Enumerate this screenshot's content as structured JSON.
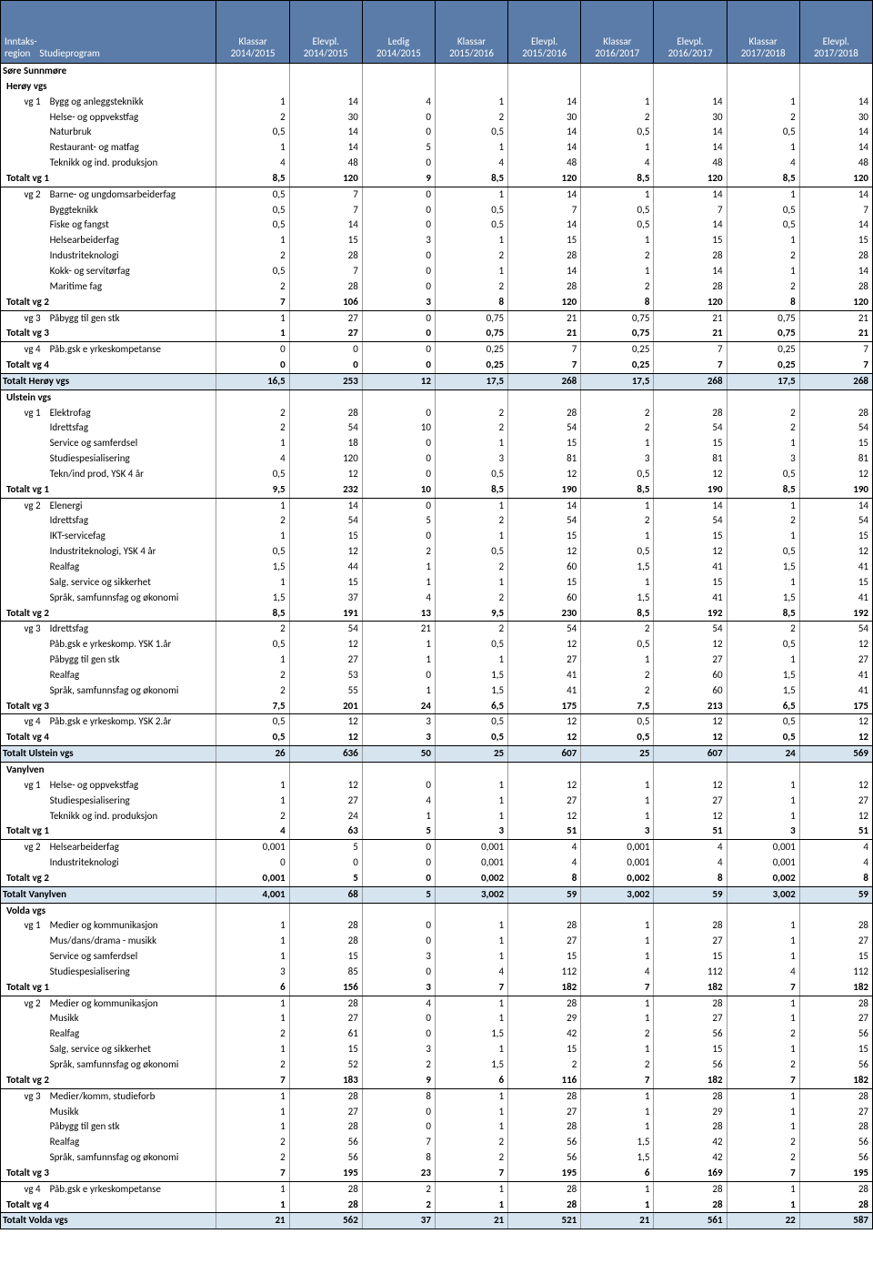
{
  "header": {
    "col_region_label": "Inntaks-\nregion",
    "col_prog_label": "Studieprogram",
    "groups": [
      {
        "k": "Klassar",
        "y": "2014/2015"
      },
      {
        "k": "Elevpl.",
        "y": "2014/2015"
      },
      {
        "k": "Ledig",
        "y": "2014/2015"
      },
      {
        "k": "Klassar",
        "y": "2015/2016"
      },
      {
        "k": "Elevpl.",
        "y": "2015/2016"
      },
      {
        "k": "Klassar",
        "y": "2016/2017"
      },
      {
        "k": "Elevpl.",
        "y": "2016/2017"
      },
      {
        "k": "Klassar",
        "y": "2017/2018"
      },
      {
        "k": "Elevpl.",
        "y": "2017/2018"
      }
    ]
  },
  "colors": {
    "header_bg": "#5b7ca8",
    "header_fg": "#ffffff",
    "schooltotal_bg": "#d6e4f0"
  },
  "rows": [
    {
      "t": "region",
      "label": "Søre Sunnmøre"
    },
    {
      "t": "school",
      "label": "Herøy vgs"
    },
    {
      "t": "data",
      "vg": "vg 1",
      "label": "Bygg og anleggsteknikk",
      "v": [
        "1",
        "14",
        "4",
        "1",
        "14",
        "1",
        "14",
        "1",
        "14"
      ]
    },
    {
      "t": "data",
      "vg": "",
      "label": "Helse- og oppvekstfag",
      "v": [
        "2",
        "30",
        "0",
        "2",
        "30",
        "2",
        "30",
        "2",
        "30"
      ]
    },
    {
      "t": "data",
      "vg": "",
      "label": "Naturbruk",
      "v": [
        "0,5",
        "14",
        "0",
        "0,5",
        "14",
        "0,5",
        "14",
        "0,5",
        "14"
      ]
    },
    {
      "t": "data",
      "vg": "",
      "label": "Restaurant- og matfag",
      "v": [
        "1",
        "14",
        "5",
        "1",
        "14",
        "1",
        "14",
        "1",
        "14"
      ]
    },
    {
      "t": "data",
      "vg": "",
      "label": "Teknikk og ind. produksjon",
      "v": [
        "4",
        "48",
        "0",
        "4",
        "48",
        "4",
        "48",
        "4",
        "48"
      ]
    },
    {
      "t": "subtotal",
      "label": "Totalt vg 1",
      "v": [
        "8,5",
        "120",
        "9",
        "8,5",
        "120",
        "8,5",
        "120",
        "8,5",
        "120"
      ]
    },
    {
      "t": "data",
      "vg": "vg 2",
      "label": "Barne- og ungdomsarbeiderfag",
      "v": [
        "0,5",
        "7",
        "0",
        "1",
        "14",
        "1",
        "14",
        "1",
        "14"
      ]
    },
    {
      "t": "data",
      "vg": "",
      "label": "Byggteknikk",
      "v": [
        "0,5",
        "7",
        "0",
        "0,5",
        "7",
        "0,5",
        "7",
        "0,5",
        "7"
      ]
    },
    {
      "t": "data",
      "vg": "",
      "label": "Fiske og fangst",
      "v": [
        "0,5",
        "14",
        "0",
        "0,5",
        "14",
        "0,5",
        "14",
        "0,5",
        "14"
      ]
    },
    {
      "t": "data",
      "vg": "",
      "label": "Helsearbeiderfag",
      "v": [
        "1",
        "15",
        "3",
        "1",
        "15",
        "1",
        "15",
        "1",
        "15"
      ]
    },
    {
      "t": "data",
      "vg": "",
      "label": "Industriteknologi",
      "v": [
        "2",
        "28",
        "0",
        "2",
        "28",
        "2",
        "28",
        "2",
        "28"
      ]
    },
    {
      "t": "data",
      "vg": "",
      "label": "Kokk- og servitørfag",
      "v": [
        "0,5",
        "7",
        "0",
        "1",
        "14",
        "1",
        "14",
        "1",
        "14"
      ]
    },
    {
      "t": "data",
      "vg": "",
      "label": "Maritime fag",
      "v": [
        "2",
        "28",
        "0",
        "2",
        "28",
        "2",
        "28",
        "2",
        "28"
      ]
    },
    {
      "t": "subtotal",
      "label": "Totalt vg 2",
      "v": [
        "7",
        "106",
        "3",
        "8",
        "120",
        "8",
        "120",
        "8",
        "120"
      ]
    },
    {
      "t": "data",
      "vg": "vg 3",
      "label": "Påbygg til gen stk",
      "v": [
        "1",
        "27",
        "0",
        "0,75",
        "21",
        "0,75",
        "21",
        "0,75",
        "21"
      ]
    },
    {
      "t": "subtotal",
      "label": "Totalt vg 3",
      "v": [
        "1",
        "27",
        "0",
        "0,75",
        "21",
        "0,75",
        "21",
        "0,75",
        "21"
      ]
    },
    {
      "t": "data",
      "vg": "vg 4",
      "label": "Påb.gsk e yrkeskompetanse",
      "v": [
        "0",
        "0",
        "0",
        "0,25",
        "7",
        "0,25",
        "7",
        "0,25",
        "7"
      ]
    },
    {
      "t": "subtotal",
      "label": "Totalt vg 4",
      "v": [
        "0",
        "0",
        "0",
        "0,25",
        "7",
        "0,25",
        "7",
        "0,25",
        "7"
      ]
    },
    {
      "t": "schooltotal",
      "label": "Totalt Herøy vgs",
      "v": [
        "16,5",
        "253",
        "12",
        "17,5",
        "268",
        "17,5",
        "268",
        "17,5",
        "268"
      ]
    },
    {
      "t": "school",
      "label": "Ulstein vgs"
    },
    {
      "t": "data",
      "vg": "vg 1",
      "label": "Elektrofag",
      "v": [
        "2",
        "28",
        "0",
        "2",
        "28",
        "2",
        "28",
        "2",
        "28"
      ]
    },
    {
      "t": "data",
      "vg": "",
      "label": "Idrettsfag",
      "v": [
        "2",
        "54",
        "10",
        "2",
        "54",
        "2",
        "54",
        "2",
        "54"
      ]
    },
    {
      "t": "data",
      "vg": "",
      "label": "Service og samferdsel",
      "v": [
        "1",
        "18",
        "0",
        "1",
        "15",
        "1",
        "15",
        "1",
        "15"
      ]
    },
    {
      "t": "data",
      "vg": "",
      "label": "Studiespesialisering",
      "v": [
        "4",
        "120",
        "0",
        "3",
        "81",
        "3",
        "81",
        "3",
        "81"
      ]
    },
    {
      "t": "data",
      "vg": "",
      "label": "Tekn/ind prod, YSK 4 år",
      "v": [
        "0,5",
        "12",
        "0",
        "0,5",
        "12",
        "0,5",
        "12",
        "0,5",
        "12"
      ]
    },
    {
      "t": "subtotal",
      "label": "Totalt vg 1",
      "v": [
        "9,5",
        "232",
        "10",
        "8,5",
        "190",
        "8,5",
        "190",
        "8,5",
        "190"
      ]
    },
    {
      "t": "data",
      "vg": "vg 2",
      "label": "Elenergi",
      "v": [
        "1",
        "14",
        "0",
        "1",
        "14",
        "1",
        "14",
        "1",
        "14"
      ]
    },
    {
      "t": "data",
      "vg": "",
      "label": "Idrettsfag",
      "v": [
        "2",
        "54",
        "5",
        "2",
        "54",
        "2",
        "54",
        "2",
        "54"
      ]
    },
    {
      "t": "data",
      "vg": "",
      "label": "IKT-servicefag",
      "v": [
        "1",
        "15",
        "0",
        "1",
        "15",
        "1",
        "15",
        "1",
        "15"
      ]
    },
    {
      "t": "data",
      "vg": "",
      "label": "Industriteknologi, YSK 4 år",
      "v": [
        "0,5",
        "12",
        "2",
        "0,5",
        "12",
        "0,5",
        "12",
        "0,5",
        "12"
      ]
    },
    {
      "t": "data",
      "vg": "",
      "label": "Realfag",
      "v": [
        "1,5",
        "44",
        "1",
        "2",
        "60",
        "1,5",
        "41",
        "1,5",
        "41"
      ]
    },
    {
      "t": "data",
      "vg": "",
      "label": "Salg, service og sikkerhet",
      "v": [
        "1",
        "15",
        "1",
        "1",
        "15",
        "1",
        "15",
        "1",
        "15"
      ]
    },
    {
      "t": "data",
      "vg": "",
      "label": "Språk, samfunnsfag og økonomi",
      "v": [
        "1,5",
        "37",
        "4",
        "2",
        "60",
        "1,5",
        "41",
        "1,5",
        "41"
      ]
    },
    {
      "t": "subtotal",
      "label": "Totalt vg 2",
      "v": [
        "8,5",
        "191",
        "13",
        "9,5",
        "230",
        "8,5",
        "192",
        "8,5",
        "192"
      ]
    },
    {
      "t": "data",
      "vg": "vg 3",
      "label": "Idrettsfag",
      "v": [
        "2",
        "54",
        "21",
        "2",
        "54",
        "2",
        "54",
        "2",
        "54"
      ]
    },
    {
      "t": "data",
      "vg": "",
      "label": "Påb.gsk  e yrkeskomp. YSK 1.år",
      "v": [
        "0,5",
        "12",
        "1",
        "0,5",
        "12",
        "0,5",
        "12",
        "0,5",
        "12"
      ]
    },
    {
      "t": "data",
      "vg": "",
      "label": "Påbygg til gen stk",
      "v": [
        "1",
        "27",
        "1",
        "1",
        "27",
        "1",
        "27",
        "1",
        "27"
      ]
    },
    {
      "t": "data",
      "vg": "",
      "label": "Realfag",
      "v": [
        "2",
        "53",
        "0",
        "1,5",
        "41",
        "2",
        "60",
        "1,5",
        "41"
      ]
    },
    {
      "t": "data",
      "vg": "",
      "label": "Språk, samfunnsfag og økonomi",
      "v": [
        "2",
        "55",
        "1",
        "1,5",
        "41",
        "2",
        "60",
        "1,5",
        "41"
      ]
    },
    {
      "t": "subtotal",
      "label": "Totalt vg 3",
      "v": [
        "7,5",
        "201",
        "24",
        "6,5",
        "175",
        "7,5",
        "213",
        "6,5",
        "175"
      ]
    },
    {
      "t": "data",
      "vg": "vg 4",
      "label": "Påb.gsk  e yrkeskomp. YSK 2.år",
      "v": [
        "0,5",
        "12",
        "3",
        "0,5",
        "12",
        "0,5",
        "12",
        "0,5",
        "12"
      ]
    },
    {
      "t": "subtotal",
      "label": "Totalt vg 4",
      "v": [
        "0,5",
        "12",
        "3",
        "0,5",
        "12",
        "0,5",
        "12",
        "0,5",
        "12"
      ]
    },
    {
      "t": "schooltotal",
      "label": "Totalt Ulstein vgs",
      "v": [
        "26",
        "636",
        "50",
        "25",
        "607",
        "25",
        "607",
        "24",
        "569"
      ]
    },
    {
      "t": "school",
      "label": "Vanylven"
    },
    {
      "t": "data",
      "vg": "vg 1",
      "label": "Helse- og oppvekstfag",
      "v": [
        "1",
        "12",
        "0",
        "1",
        "12",
        "1",
        "12",
        "1",
        "12"
      ]
    },
    {
      "t": "data",
      "vg": "",
      "label": "Studiespesialisering",
      "v": [
        "1",
        "27",
        "4",
        "1",
        "27",
        "1",
        "27",
        "1",
        "27"
      ]
    },
    {
      "t": "data",
      "vg": "",
      "label": "Teknikk og ind. produksjon",
      "v": [
        "2",
        "24",
        "1",
        "1",
        "12",
        "1",
        "12",
        "1",
        "12"
      ]
    },
    {
      "t": "subtotal",
      "label": "Totalt vg 1",
      "v": [
        "4",
        "63",
        "5",
        "3",
        "51",
        "3",
        "51",
        "3",
        "51"
      ]
    },
    {
      "t": "data",
      "vg": "vg 2",
      "label": "Helsearbeiderfag",
      "v": [
        "0,001",
        "5",
        "0",
        "0,001",
        "4",
        "0,001",
        "4",
        "0,001",
        "4"
      ]
    },
    {
      "t": "data",
      "vg": "",
      "label": "Industriteknologi",
      "v": [
        "0",
        "0",
        "0",
        "0,001",
        "4",
        "0,001",
        "4",
        "0,001",
        "4"
      ]
    },
    {
      "t": "subtotal",
      "label": "Totalt vg 2",
      "v": [
        "0,001",
        "5",
        "0",
        "0,002",
        "8",
        "0,002",
        "8",
        "0,002",
        "8"
      ]
    },
    {
      "t": "schooltotal",
      "label": "Totalt Vanylven",
      "v": [
        "4,001",
        "68",
        "5",
        "3,002",
        "59",
        "3,002",
        "59",
        "3,002",
        "59"
      ]
    },
    {
      "t": "school",
      "label": "Volda vgs"
    },
    {
      "t": "data",
      "vg": "vg 1",
      "label": "Medier og kommunikasjon",
      "v": [
        "1",
        "28",
        "0",
        "1",
        "28",
        "1",
        "28",
        "1",
        "28"
      ]
    },
    {
      "t": "data",
      "vg": "",
      "label": "Mus/dans/drama - musikk",
      "v": [
        "1",
        "28",
        "0",
        "1",
        "27",
        "1",
        "27",
        "1",
        "27"
      ]
    },
    {
      "t": "data",
      "vg": "",
      "label": "Service og samferdsel",
      "v": [
        "1",
        "15",
        "3",
        "1",
        "15",
        "1",
        "15",
        "1",
        "15"
      ]
    },
    {
      "t": "data",
      "vg": "",
      "label": "Studiespesialisering",
      "v": [
        "3",
        "85",
        "0",
        "4",
        "112",
        "4",
        "112",
        "4",
        "112"
      ]
    },
    {
      "t": "subtotal",
      "label": "Totalt vg 1",
      "v": [
        "6",
        "156",
        "3",
        "7",
        "182",
        "7",
        "182",
        "7",
        "182"
      ]
    },
    {
      "t": "data",
      "vg": "vg 2",
      "label": "Medier og kommunikasjon",
      "v": [
        "1",
        "28",
        "4",
        "1",
        "28",
        "1",
        "28",
        "1",
        "28"
      ]
    },
    {
      "t": "data",
      "vg": "",
      "label": "Musikk",
      "v": [
        "1",
        "27",
        "0",
        "1",
        "29",
        "1",
        "27",
        "1",
        "27"
      ]
    },
    {
      "t": "data",
      "vg": "",
      "label": "Realfag",
      "v": [
        "2",
        "61",
        "0",
        "1,5",
        "42",
        "2",
        "56",
        "2",
        "56"
      ]
    },
    {
      "t": "data",
      "vg": "",
      "label": "Salg, service og sikkerhet",
      "v": [
        "1",
        "15",
        "3",
        "1",
        "15",
        "1",
        "15",
        "1",
        "15"
      ]
    },
    {
      "t": "data",
      "vg": "",
      "label": "Språk, samfunnsfag og økonomi",
      "v": [
        "2",
        "52",
        "2",
        "1,5",
        "2",
        "2",
        "56",
        "2",
        "56"
      ]
    },
    {
      "t": "subtotal",
      "label": "Totalt vg 2",
      "v": [
        "7",
        "183",
        "9",
        "6",
        "116",
        "7",
        "182",
        "7",
        "182"
      ]
    },
    {
      "t": "data",
      "vg": "vg 3",
      "label": "Medier/komm, studieforb",
      "v": [
        "1",
        "28",
        "8",
        "1",
        "28",
        "1",
        "28",
        "1",
        "28"
      ]
    },
    {
      "t": "data",
      "vg": "",
      "label": "Musikk",
      "v": [
        "1",
        "27",
        "0",
        "1",
        "27",
        "1",
        "29",
        "1",
        "27"
      ]
    },
    {
      "t": "data",
      "vg": "",
      "label": "Påbygg til gen stk",
      "v": [
        "1",
        "28",
        "0",
        "1",
        "28",
        "1",
        "28",
        "1",
        "28"
      ]
    },
    {
      "t": "data",
      "vg": "",
      "label": "Realfag",
      "v": [
        "2",
        "56",
        "7",
        "2",
        "56",
        "1,5",
        "42",
        "2",
        "56"
      ]
    },
    {
      "t": "data",
      "vg": "",
      "label": "Språk, samfunnsfag og økonomi",
      "v": [
        "2",
        "56",
        "8",
        "2",
        "56",
        "1,5",
        "42",
        "2",
        "56"
      ]
    },
    {
      "t": "subtotal",
      "label": "Totalt vg 3",
      "v": [
        "7",
        "195",
        "23",
        "7",
        "195",
        "6",
        "169",
        "7",
        "195"
      ]
    },
    {
      "t": "data",
      "vg": "vg 4",
      "label": "Påb.gsk  e yrkeskompetanse",
      "v": [
        "1",
        "28",
        "2",
        "1",
        "28",
        "1",
        "28",
        "1",
        "28"
      ]
    },
    {
      "t": "subtotal",
      "label": "Totalt vg 4",
      "v": [
        "1",
        "28",
        "2",
        "1",
        "28",
        "1",
        "28",
        "1",
        "28"
      ]
    },
    {
      "t": "schooltotal",
      "label": "Totalt Volda vgs",
      "v": [
        "21",
        "562",
        "37",
        "21",
        "521",
        "21",
        "561",
        "22",
        "587"
      ],
      "last": true
    }
  ]
}
